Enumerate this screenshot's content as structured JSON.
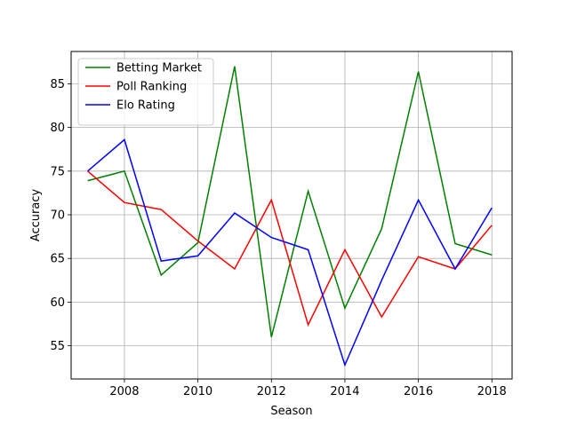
{
  "chart_data": {
    "type": "line",
    "title": "",
    "xlabel": "Season",
    "ylabel": "Accuracy",
    "x": [
      2007,
      2008,
      2009,
      2010,
      2011,
      2012,
      2013,
      2014,
      2015,
      2016,
      2017,
      2018
    ],
    "xlim": [
      2006.55,
      2018.55
    ],
    "ylim": [
      51.2,
      88.7
    ],
    "xticks": [
      2008,
      2010,
      2012,
      2014,
      2016,
      2018
    ],
    "yticks": [
      55,
      60,
      65,
      70,
      75,
      80,
      85
    ],
    "grid": true,
    "legend_position": "upper-left",
    "series": [
      {
        "name": "Betting Market",
        "color": "#008000",
        "values": [
          73.9,
          75.0,
          63.1,
          66.8,
          87.0,
          56.0,
          72.7,
          59.3,
          68.4,
          86.4,
          66.7,
          65.4
        ]
      },
      {
        "name": "Poll Ranking",
        "color": "#ff0000",
        "values": [
          75.0,
          71.4,
          70.6,
          67.0,
          63.8,
          71.7,
          57.4,
          66.0,
          58.3,
          65.2,
          63.8,
          68.8
        ]
      },
      {
        "name": "Elo Rating",
        "color": "#0000ff",
        "values": [
          75.0,
          78.6,
          64.7,
          65.3,
          70.2,
          67.4,
          66.0,
          52.8,
          62.5,
          71.7,
          63.8,
          70.8
        ]
      }
    ]
  }
}
